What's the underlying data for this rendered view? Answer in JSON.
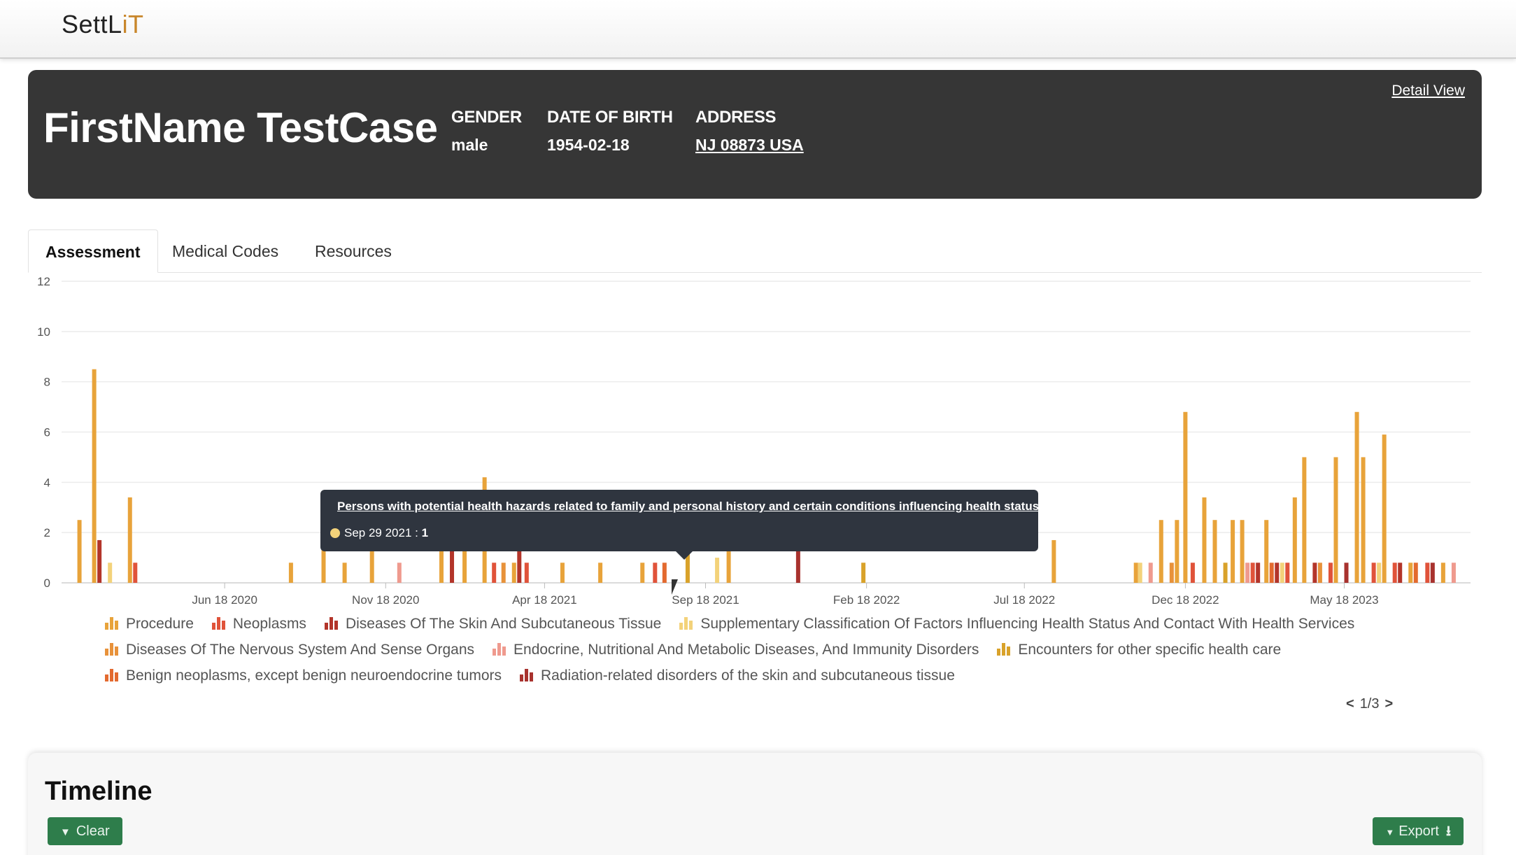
{
  "app": {
    "logo_main": "SettL",
    "logo_accent": "iT"
  },
  "patient": {
    "name": "FirstName TestCase",
    "gender_label": "GENDER",
    "gender": "male",
    "dob_label": "DATE OF BIRTH",
    "dob": "1954-02-18",
    "address_label": "ADDRESS",
    "address": "NJ 08873 USA",
    "detail_link": "Detail View"
  },
  "tabs": [
    {
      "label": "Assessment",
      "active": true
    },
    {
      "label": "Medical Codes",
      "active": false
    },
    {
      "label": "Resources",
      "active": false
    }
  ],
  "tooltip": {
    "title": "Persons with potential health hazards related to family and personal history and certain conditions influencing health status",
    "date": "Sep 29 2021",
    "value": "1",
    "color": "#f3d27a"
  },
  "chart_data": {
    "type": "bar",
    "x_axis_type": "date",
    "ylim": [
      0,
      12
    ],
    "y_ticks": [
      0,
      2,
      4,
      6,
      8,
      10,
      12
    ],
    "x_ticks": [
      "Jun 18 2020",
      "Nov 18 2020",
      "Apr 18 2021",
      "Sep 18 2021",
      "Feb 18 2022",
      "Jul 18 2022",
      "Dec 18 2022",
      "May 18 2023"
    ],
    "x_range": [
      "2020-01-15",
      "2023-09-15"
    ],
    "grid": true,
    "legend_position": "bottom",
    "series": [
      {
        "name": "Procedure",
        "color": "#e8a33a",
        "points": [
          [
            "2020-02-01",
            2.5
          ],
          [
            "2020-02-15",
            8.5
          ],
          [
            "2020-03-20",
            3.4
          ],
          [
            "2020-08-20",
            0.8
          ],
          [
            "2020-09-20",
            2.5
          ],
          [
            "2020-10-10",
            0.8
          ],
          [
            "2020-11-05",
            1.5
          ],
          [
            "2021-01-10",
            2.5
          ],
          [
            "2021-02-01",
            2.5
          ],
          [
            "2021-02-20",
            4.2
          ],
          [
            "2021-03-20",
            0.8
          ],
          [
            "2021-05-05",
            0.8
          ],
          [
            "2021-06-10",
            0.8
          ],
          [
            "2021-07-20",
            0.8
          ],
          [
            "2021-10-10",
            1.7
          ],
          [
            "2022-08-15",
            1.7
          ],
          [
            "2022-11-01",
            0.8
          ],
          [
            "2022-11-25",
            2.5
          ],
          [
            "2022-12-10",
            2.5
          ],
          [
            "2022-12-18",
            6.8
          ],
          [
            "2023-01-05",
            3.4
          ],
          [
            "2023-01-15",
            2.5
          ],
          [
            "2023-02-01",
            2.5
          ],
          [
            "2023-02-10",
            2.5
          ],
          [
            "2023-03-05",
            2.5
          ],
          [
            "2023-04-01",
            3.4
          ],
          [
            "2023-04-10",
            5.0
          ],
          [
            "2023-05-10",
            5.0
          ],
          [
            "2023-05-30",
            6.8
          ],
          [
            "2023-06-05",
            5.0
          ],
          [
            "2023-06-25",
            5.9
          ],
          [
            "2023-07-20",
            0.8
          ],
          [
            "2023-08-20",
            0.8
          ]
        ]
      },
      {
        "name": "Neoplasms",
        "color": "#e0533a",
        "points": [
          [
            "2020-03-25",
            0.8
          ],
          [
            "2021-03-01",
            0.8
          ],
          [
            "2021-04-01",
            0.8
          ],
          [
            "2021-08-01",
            0.8
          ],
          [
            "2022-12-25",
            0.8
          ],
          [
            "2023-02-20",
            0.8
          ],
          [
            "2023-03-25",
            0.8
          ],
          [
            "2023-05-05",
            0.8
          ],
          [
            "2023-06-15",
            0.8
          ],
          [
            "2023-07-05",
            0.8
          ],
          [
            "2023-08-05",
            0.8
          ]
        ]
      },
      {
        "name": "Diseases Of The Skin And Subcutaneous Tissue",
        "color": "#b3352a",
        "points": [
          [
            "2020-02-20",
            1.7
          ],
          [
            "2021-01-20",
            1.7
          ],
          [
            "2021-03-25",
            2.5
          ],
          [
            "2023-02-25",
            0.8
          ],
          [
            "2023-03-15",
            0.8
          ],
          [
            "2023-04-20",
            0.8
          ],
          [
            "2023-07-10",
            0.8
          ]
        ]
      },
      {
        "name": "Supplementary Classification Of Factors Influencing Health Status And Contact With Health Services",
        "color": "#f3d27a",
        "points": [
          [
            "2020-03-01",
            0.8
          ],
          [
            "2021-09-29",
            1
          ],
          [
            "2022-11-05",
            0.8
          ],
          [
            "2023-03-20",
            0.8
          ],
          [
            "2023-06-20",
            0.8
          ]
        ]
      },
      {
        "name": "Diseases Of The Nervous System And Sense Organs",
        "color": "#e8923a",
        "points": [
          [
            "2021-03-10",
            0.8
          ],
          [
            "2022-12-05",
            0.8
          ],
          [
            "2023-04-25",
            0.8
          ]
        ]
      },
      {
        "name": "Endocrine, Nutritional And Metabolic Diseases, And Immunity Disorders",
        "color": "#ef9a8e",
        "points": [
          [
            "2020-12-01",
            0.8
          ],
          [
            "2022-11-15",
            0.8
          ],
          [
            "2023-02-15",
            0.8
          ],
          [
            "2023-08-30",
            0.8
          ]
        ]
      },
      {
        "name": "Encounters for other specific health care",
        "color": "#d9a22a",
        "points": [
          [
            "2021-09-01",
            2.5
          ],
          [
            "2022-02-15",
            0.8
          ],
          [
            "2023-01-25",
            0.8
          ]
        ]
      },
      {
        "name": "Benign neoplasms, except benign neuroendocrine tumors",
        "color": "#e36a2f",
        "points": [
          [
            "2021-08-10",
            0.8
          ],
          [
            "2023-03-10",
            0.8
          ],
          [
            "2023-07-25",
            0.8
          ]
        ]
      },
      {
        "name": "Radiation-related disorders of the skin and subcutaneous tissue",
        "color": "#a8322e",
        "points": [
          [
            "2021-12-15",
            1.7
          ],
          [
            "2023-05-20",
            0.8
          ],
          [
            "2023-08-10",
            0.8
          ]
        ]
      }
    ]
  },
  "pager": {
    "prev": "<",
    "text": "1/3",
    "next": ">"
  },
  "timeline": {
    "title": "Timeline",
    "clear_label": "Clear",
    "export_label": "Export"
  }
}
